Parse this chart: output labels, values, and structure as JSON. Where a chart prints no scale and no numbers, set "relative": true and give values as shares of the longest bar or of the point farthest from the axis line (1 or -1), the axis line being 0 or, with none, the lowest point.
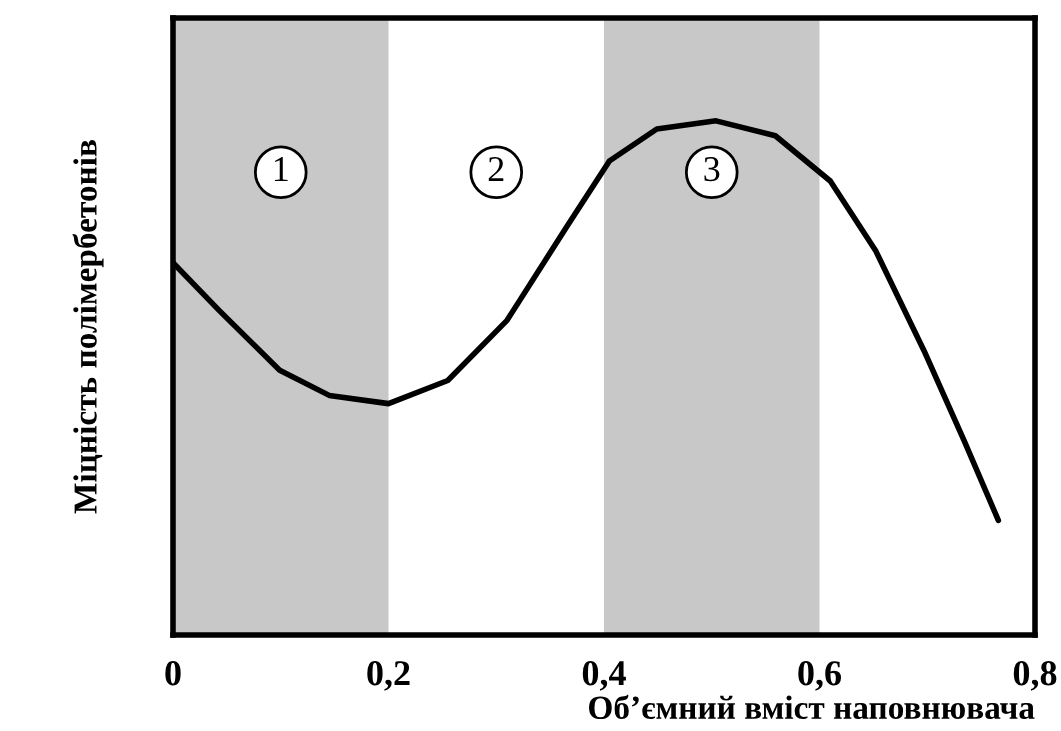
{
  "chart_data": {
    "type": "line",
    "relative": true,
    "xlabel": "Об’ємний вміст наповнювача",
    "ylabel": "Міцність полімербетонів",
    "x": [
      0,
      0.043,
      0.099,
      0.145,
      0.2,
      0.255,
      0.31,
      0.366,
      0.405,
      0.449,
      0.504,
      0.559,
      0.61,
      0.652,
      0.697,
      0.734,
      0.766
    ],
    "series": [
      {
        "color": "#000000",
        "values": [
          0.724,
          0.631,
          0.515,
          0.466,
          0.45,
          0.495,
          0.612,
          0.796,
          0.922,
          0.984,
          1,
          0.971,
          0.883,
          0.748,
          0.553,
          0.379,
          0.223
        ]
      }
    ],
    "xlim": [
      0,
      0.8
    ],
    "xticks": [
      0,
      {
        "value": 0.2,
        "label": "0,2"
      },
      {
        "value": 0.4,
        "label": "0,4"
      },
      {
        "value": 0.6,
        "label": "0,6"
      },
      {
        "value": 0.8,
        "label": "0,8"
      }
    ],
    "bands": [
      {
        "axis": "x",
        "from": 0,
        "to": 0.2,
        "label": "1",
        "color": "#c8c8c8"
      },
      {
        "axis": "x",
        "from": 0.4,
        "to": 0.6,
        "label": "3",
        "color": "#c8c8c8"
      }
    ],
    "annotations": [
      "2"
    ],
    "grid": false,
    "legend": false,
    "marker": "none",
    "line_style": "solid"
  }
}
